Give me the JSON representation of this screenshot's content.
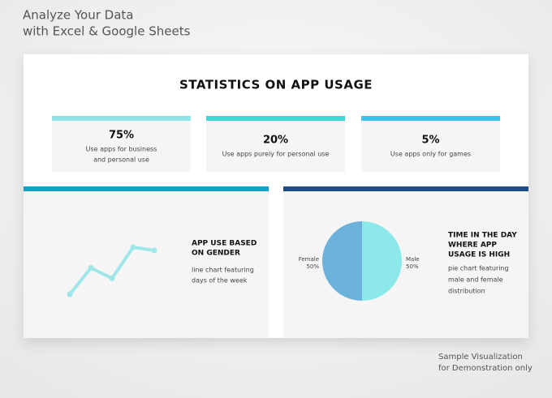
{
  "header": {
    "lines": [
      "Analyze Your Data",
      "with Excel & Google Sheets"
    ]
  },
  "title": "STATISTICS ON APP USAGE",
  "stats": [
    {
      "value": "75%",
      "lines": [
        "Use apps for business",
        "and personal use"
      ],
      "color": "#8fe4e8"
    },
    {
      "value": "20%",
      "lines": [
        "Use apps purely for personal use"
      ],
      "color": "#3fd8d8"
    },
    {
      "value": "5%",
      "lines": [
        "Use apps only for games"
      ],
      "color": "#3cc4ee"
    }
  ],
  "line_panel": {
    "heading": [
      "APP USE BASED",
      "ON GENDER"
    ],
    "description": [
      "line chart featuring",
      "days of the week"
    ],
    "bar_color": "#14a0c6",
    "chart": {
      "type": "line",
      "values": [
        0,
        33,
        20,
        59,
        55
      ],
      "ylim": [
        0,
        60
      ],
      "color": "#9ee6e8"
    }
  },
  "pie_panel": {
    "heading": [
      "TIME IN THE DAY",
      "WHERE APP",
      "USAGE IS HIGH"
    ],
    "description": [
      "pie chart featuring",
      "male and female",
      "distribution"
    ],
    "bar_color": "#1b4e87",
    "chart": {
      "type": "pie",
      "categories": [
        "Female",
        "Male"
      ],
      "values": [
        50,
        50
      ],
      "value_labels": [
        "50%",
        "50%"
      ],
      "colors": [
        "#6cb1da",
        "#8de9e9"
      ]
    }
  },
  "footer": {
    "lines": [
      "Sample Visualization",
      "for Demonstration only"
    ]
  }
}
